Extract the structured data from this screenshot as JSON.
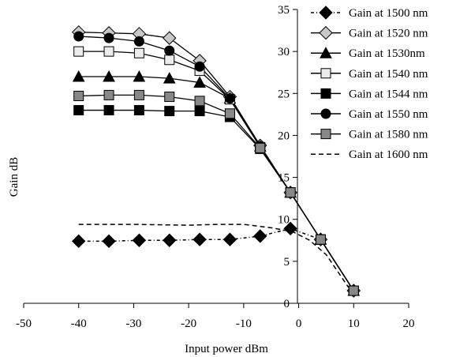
{
  "chart_data": {
    "type": "line",
    "title": "",
    "xlabel": "Input power dBm",
    "ylabel": "Gain dB",
    "xlim": [
      -50,
      20
    ],
    "ylim": [
      0,
      35
    ],
    "xticks": [
      -50,
      -40,
      -30,
      -20,
      -10,
      0,
      10,
      20
    ],
    "yticks": [
      0,
      5,
      10,
      15,
      20,
      25,
      30,
      35
    ],
    "grid": false,
    "legend_position": "top-right",
    "series": [
      {
        "name": "Gain at 1500 nm",
        "marker": "diamond",
        "fill": "#000000",
        "line": "dashdot",
        "x": [
          -40,
          -34.5,
          -29,
          -23.5,
          -18,
          -12.5,
          -7,
          -1.5,
          4,
          10
        ],
        "y": [
          7.4,
          7.4,
          7.5,
          7.5,
          7.6,
          7.6,
          8.0,
          8.9,
          7.6,
          1.5
        ]
      },
      {
        "name": "Gain at 1520 nm",
        "marker": "diamond",
        "fill": "#c8c8c8",
        "line": "solid",
        "x": [
          -40,
          -34.5,
          -29,
          -23.5,
          -18,
          -12.5,
          -7,
          -1.5,
          4,
          10
        ],
        "y": [
          32.3,
          32.2,
          32.1,
          31.6,
          28.9,
          24.6,
          18.8,
          13.2,
          7.6,
          1.5
        ]
      },
      {
        "name": "Gain at 1530nm",
        "marker": "triangle",
        "fill": "#000000",
        "line": "solid",
        "x": [
          -40,
          -34.5,
          -29,
          -23.5,
          -18,
          -12.5,
          -7,
          -1.5,
          4,
          10
        ],
        "y": [
          27.0,
          27.0,
          27.0,
          26.8,
          26.3,
          24.4,
          18.7,
          13.2,
          7.6,
          1.5
        ]
      },
      {
        "name": "Gain at 1540 nm",
        "marker": "square",
        "fill": "#ececec",
        "line": "solid",
        "x": [
          -40,
          -34.5,
          -29,
          -23.5,
          -18,
          -12.5,
          -7,
          -1.5,
          4,
          10
        ],
        "y": [
          30.0,
          30.0,
          29.8,
          29.0,
          27.7,
          24.3,
          18.6,
          13.2,
          7.6,
          1.5
        ]
      },
      {
        "name": "Gain at 1544 nm",
        "marker": "square",
        "fill": "#000000",
        "line": "solid",
        "x": [
          -40,
          -34.5,
          -29,
          -23.5,
          -18,
          -12.5,
          -7,
          -1.5,
          4,
          10
        ],
        "y": [
          23.0,
          23.0,
          23.0,
          22.9,
          22.9,
          22.2,
          18.4,
          13.2,
          7.6,
          1.5
        ]
      },
      {
        "name": "Gain at 1550 nm",
        "marker": "circle",
        "fill": "#000000",
        "line": "solid",
        "x": [
          -40,
          -34.5,
          -29,
          -23.5,
          -18,
          -12.5,
          -7,
          -1.5,
          4,
          10
        ],
        "y": [
          31.8,
          31.6,
          31.2,
          30.1,
          28.2,
          24.4,
          18.7,
          13.2,
          7.6,
          1.5
        ]
      },
      {
        "name": "Gain at 1580 nm",
        "marker": "square",
        "fill": "#888888",
        "line": "solid",
        "x": [
          -40,
          -34.5,
          -29,
          -23.5,
          -18,
          -12.5,
          -7,
          -1.5,
          4,
          10
        ],
        "y": [
          24.7,
          24.8,
          24.8,
          24.6,
          24.1,
          22.6,
          18.5,
          13.2,
          7.6,
          1.5
        ]
      },
      {
        "name": "Gain at 1600 nm",
        "marker": "none",
        "fill": "none",
        "line": "dashed",
        "x": [
          -40,
          -30,
          -20,
          -15,
          -10,
          -5,
          -1,
          2,
          5,
          10
        ],
        "y": [
          9.4,
          9.4,
          9.3,
          9.4,
          9.4,
          9.0,
          8.5,
          7.5,
          5.8,
          1.0
        ]
      }
    ]
  }
}
